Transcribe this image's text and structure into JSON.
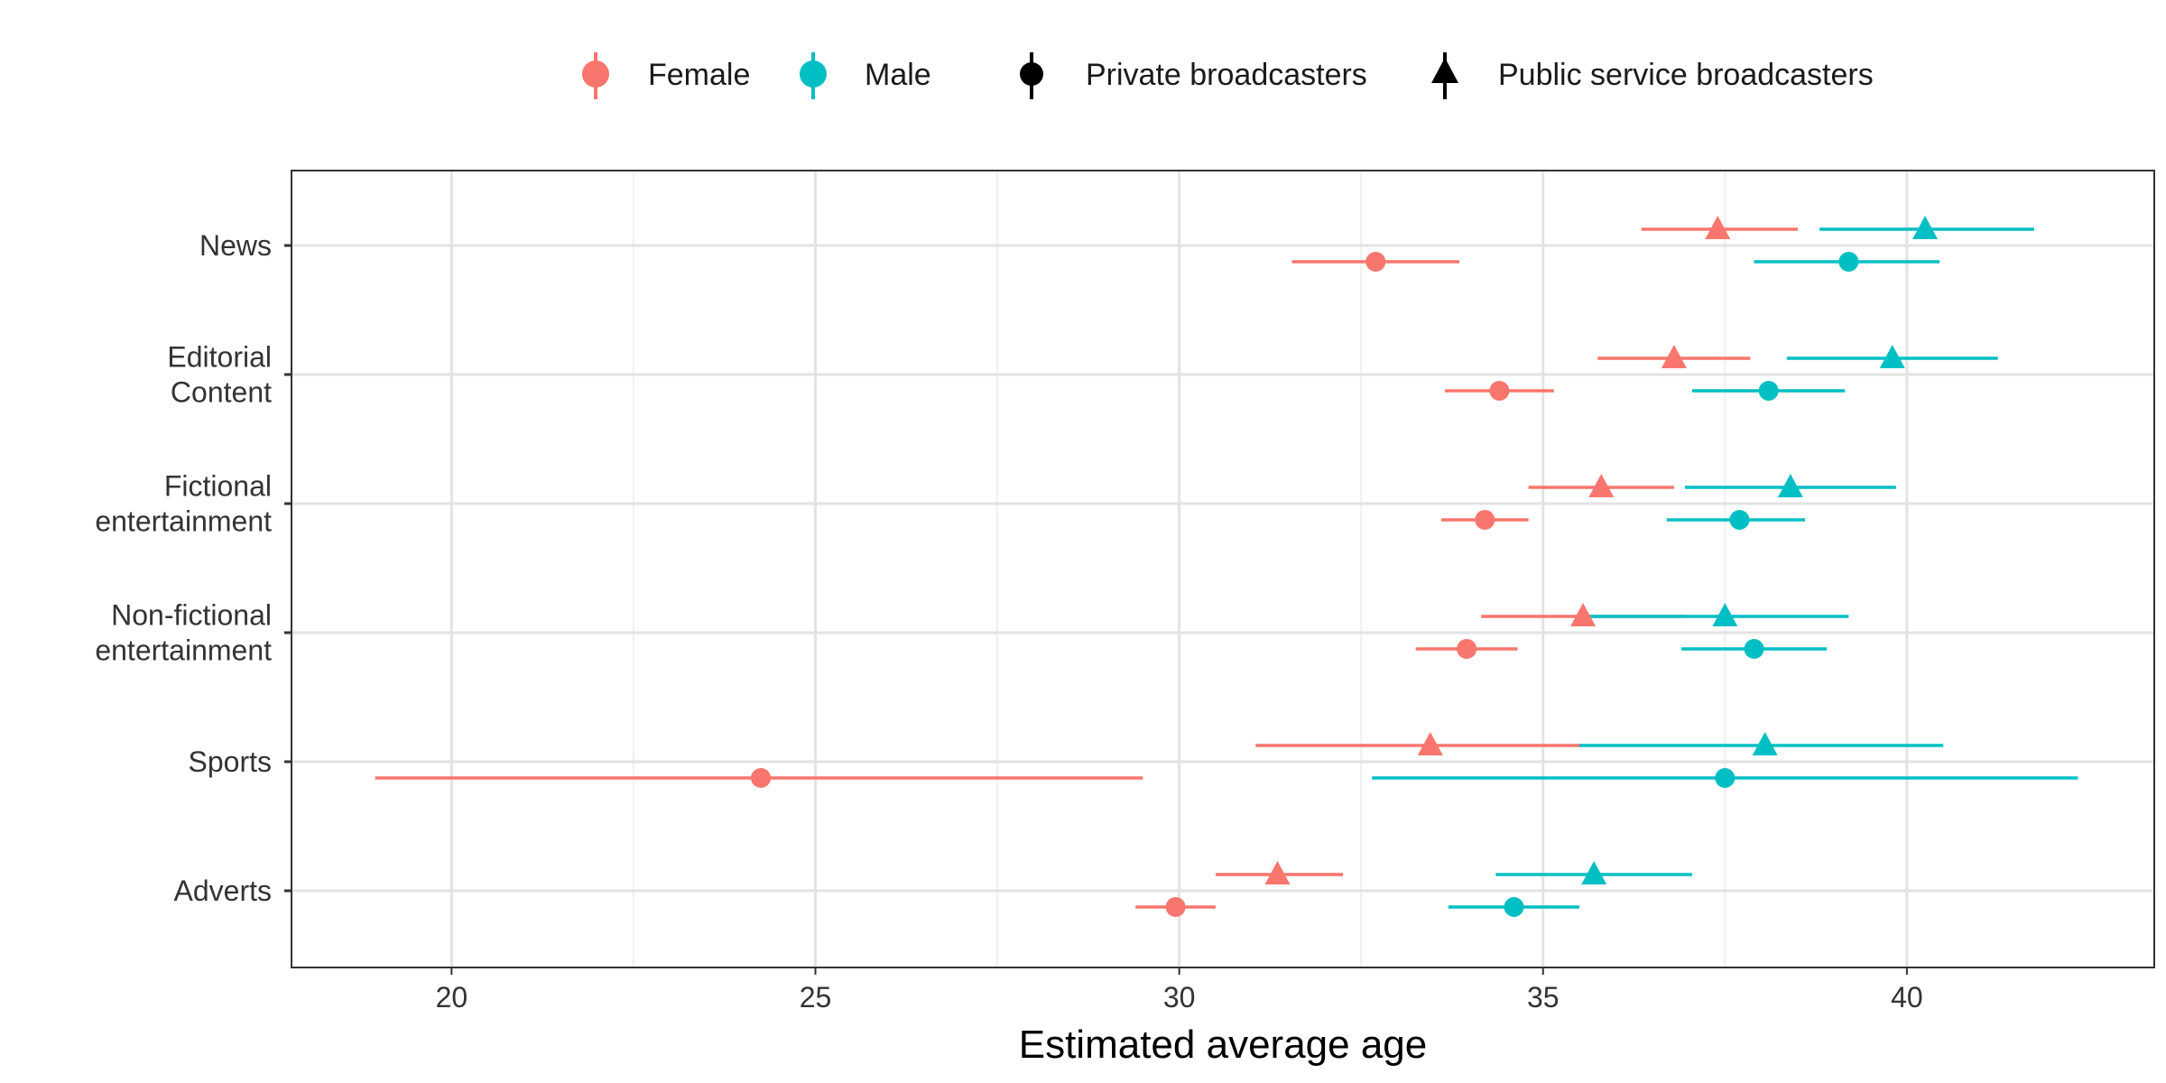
{
  "chart_data": {
    "type": "scatter",
    "subtype": "dot-and-whisker",
    "xlabel": "Estimated average age",
    "ylabel": "",
    "xlim": [
      17.8,
      43.4
    ],
    "x_ticks": [
      20,
      25,
      30,
      35,
      40
    ],
    "x_tick_labels": [
      "20",
      "25",
      "30",
      "35",
      "40"
    ],
    "categories": [
      "News",
      "Editorial Content",
      "Fictional entertainment",
      "Non-fictional entertainment",
      "Sports",
      "Adverts"
    ],
    "category_lines": [
      [
        "News"
      ],
      [
        "Editorial",
        "Content"
      ],
      [
        "Fictional",
        "entertainment"
      ],
      [
        "Non-fictional",
        "entertainment"
      ],
      [
        "Sports"
      ],
      [
        "Adverts"
      ]
    ],
    "grid": true,
    "legend_position": "top",
    "legend": {
      "color": [
        {
          "label": "Female",
          "color": "#F8766D"
        },
        {
          "label": "Male",
          "color": "#00BFC4"
        }
      ],
      "shape": [
        {
          "label": "Private broadcasters",
          "shape": "circle"
        },
        {
          "label": "Public service broadcasters",
          "shape": "triangle"
        }
      ]
    },
    "series": [
      {
        "gender": "Female",
        "broadcaster": "Public service broadcasters",
        "color": "#F8766D",
        "shape": "triangle",
        "values": [
          37.4,
          36.8,
          35.8,
          35.55,
          33.45,
          31.35
        ],
        "lower": [
          36.35,
          35.75,
          34.8,
          34.15,
          31.05,
          30.5
        ],
        "upper": [
          38.5,
          37.85,
          36.8,
          36.95,
          35.55,
          32.25
        ]
      },
      {
        "gender": "Female",
        "broadcaster": "Private broadcasters",
        "color": "#F8766D",
        "shape": "circle",
        "values": [
          32.7,
          34.4,
          34.2,
          33.95,
          24.25,
          29.95
        ],
        "lower": [
          31.55,
          33.65,
          33.6,
          33.25,
          18.95,
          29.4
        ],
        "upper": [
          33.85,
          35.15,
          34.8,
          34.65,
          29.5,
          30.5
        ]
      },
      {
        "gender": "Male",
        "broadcaster": "Public service broadcasters",
        "color": "#00BFC4",
        "shape": "triangle",
        "values": [
          40.25,
          39.8,
          38.4,
          37.5,
          38.05,
          35.7
        ],
        "lower": [
          38.8,
          38.35,
          36.95,
          35.5,
          35.5,
          34.35
        ],
        "upper": [
          41.75,
          41.25,
          39.85,
          39.2,
          40.5,
          37.05
        ]
      },
      {
        "gender": "Male",
        "broadcaster": "Private broadcasters",
        "color": "#00BFC4",
        "shape": "circle",
        "values": [
          39.2,
          38.1,
          37.7,
          37.9,
          37.5,
          34.6
        ],
        "lower": [
          37.9,
          37.05,
          36.7,
          36.9,
          32.65,
          33.7
        ],
        "upper": [
          40.45,
          39.15,
          38.6,
          38.9,
          42.35,
          35.5
        ]
      }
    ]
  }
}
